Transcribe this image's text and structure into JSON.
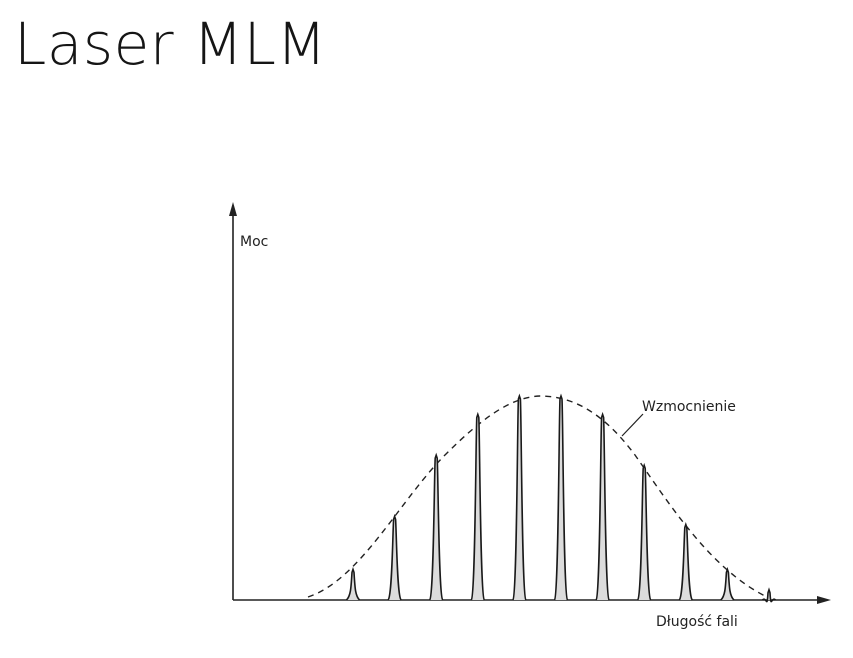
{
  "slide": {
    "title": "Laser MLM"
  },
  "diagram": {
    "y_axis_label": "Moc",
    "x_axis_label": "Długość fali",
    "envelope_label": "Wzmocnienie",
    "mode_count": 11,
    "mode_heights": [
      0.15,
      0.41,
      0.71,
      0.91,
      1.0,
      1.0,
      0.91,
      0.66,
      0.37,
      0.15,
      0.05
    ]
  }
}
